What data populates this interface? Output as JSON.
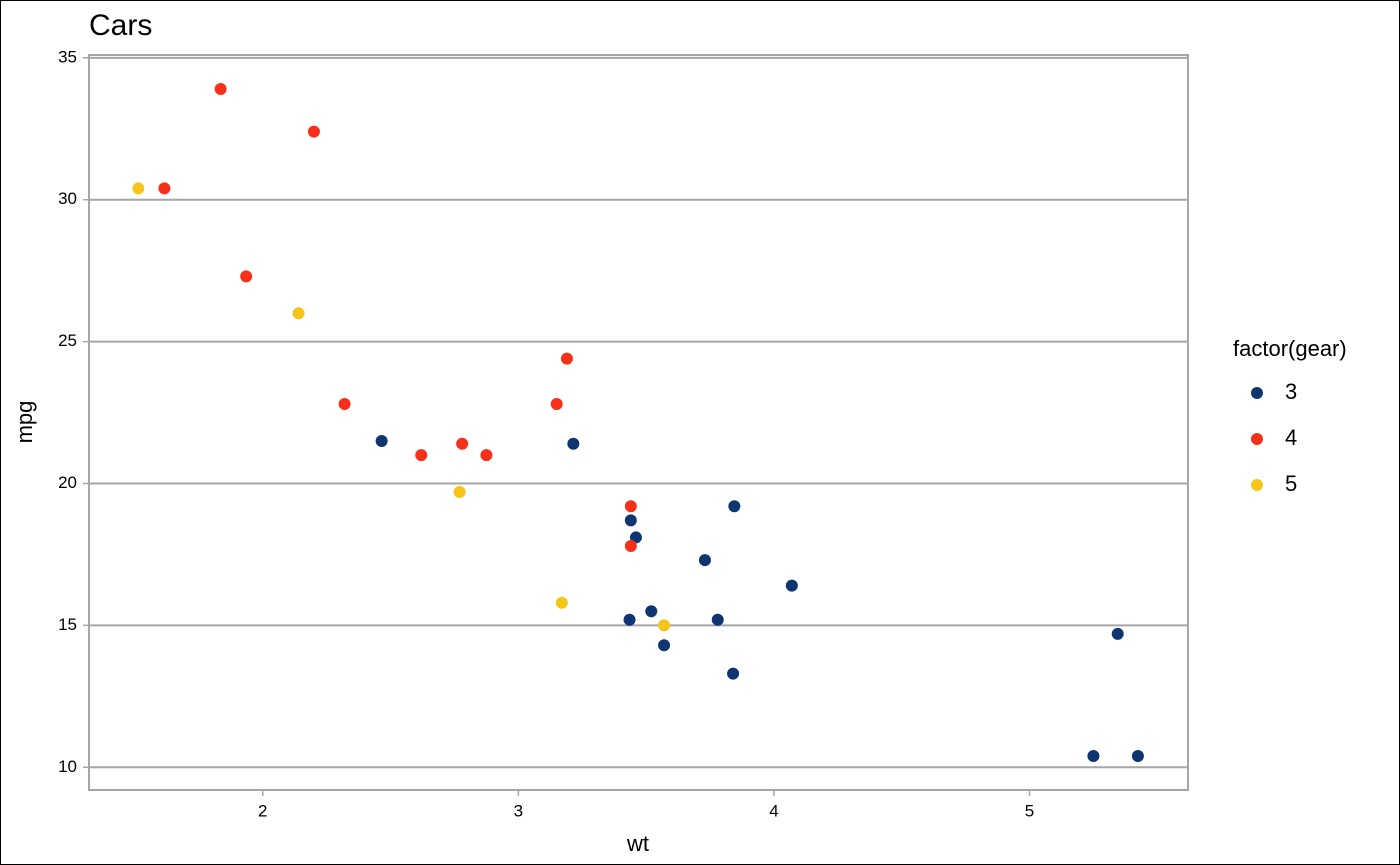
{
  "chart_data": {
    "type": "scatter",
    "title": "Cars",
    "x_label": "wt",
    "y_label": "mpg",
    "legend_title": "factor(gear)",
    "legend_position": "right",
    "grid": "y",
    "xlim": [
      1.32,
      5.62
    ],
    "ylim": [
      9.2,
      35.1
    ],
    "xticks": [
      2,
      3,
      4,
      5
    ],
    "yticks": [
      10,
      15,
      20,
      25,
      30,
      35
    ],
    "series": [
      {
        "name": "3",
        "color": "#0f3570",
        "x": [
          3.215,
          3.44,
          3.46,
          3.57,
          4.07,
          3.73,
          3.78,
          5.25,
          5.424,
          5.345,
          2.465,
          3.52,
          3.435,
          3.84,
          3.845
        ],
        "y": [
          21.4,
          18.7,
          18.1,
          14.3,
          16.4,
          17.3,
          15.2,
          10.4,
          10.4,
          14.7,
          21.5,
          15.5,
          15.2,
          13.3,
          19.2
        ]
      },
      {
        "name": "4",
        "color": "#f5311b",
        "x": [
          2.62,
          2.875,
          2.32,
          3.19,
          3.15,
          3.44,
          3.44,
          2.2,
          1.615,
          1.835,
          1.935,
          2.78
        ],
        "y": [
          21.0,
          21.0,
          22.8,
          24.4,
          22.8,
          19.2,
          17.8,
          32.4,
          30.4,
          33.9,
          27.3,
          21.4
        ]
      },
      {
        "name": "5",
        "color": "#f6c519",
        "x": [
          2.14,
          1.513,
          3.17,
          2.77,
          3.57
        ],
        "y": [
          26.0,
          30.4,
          15.8,
          19.7,
          15.0
        ]
      }
    ]
  }
}
